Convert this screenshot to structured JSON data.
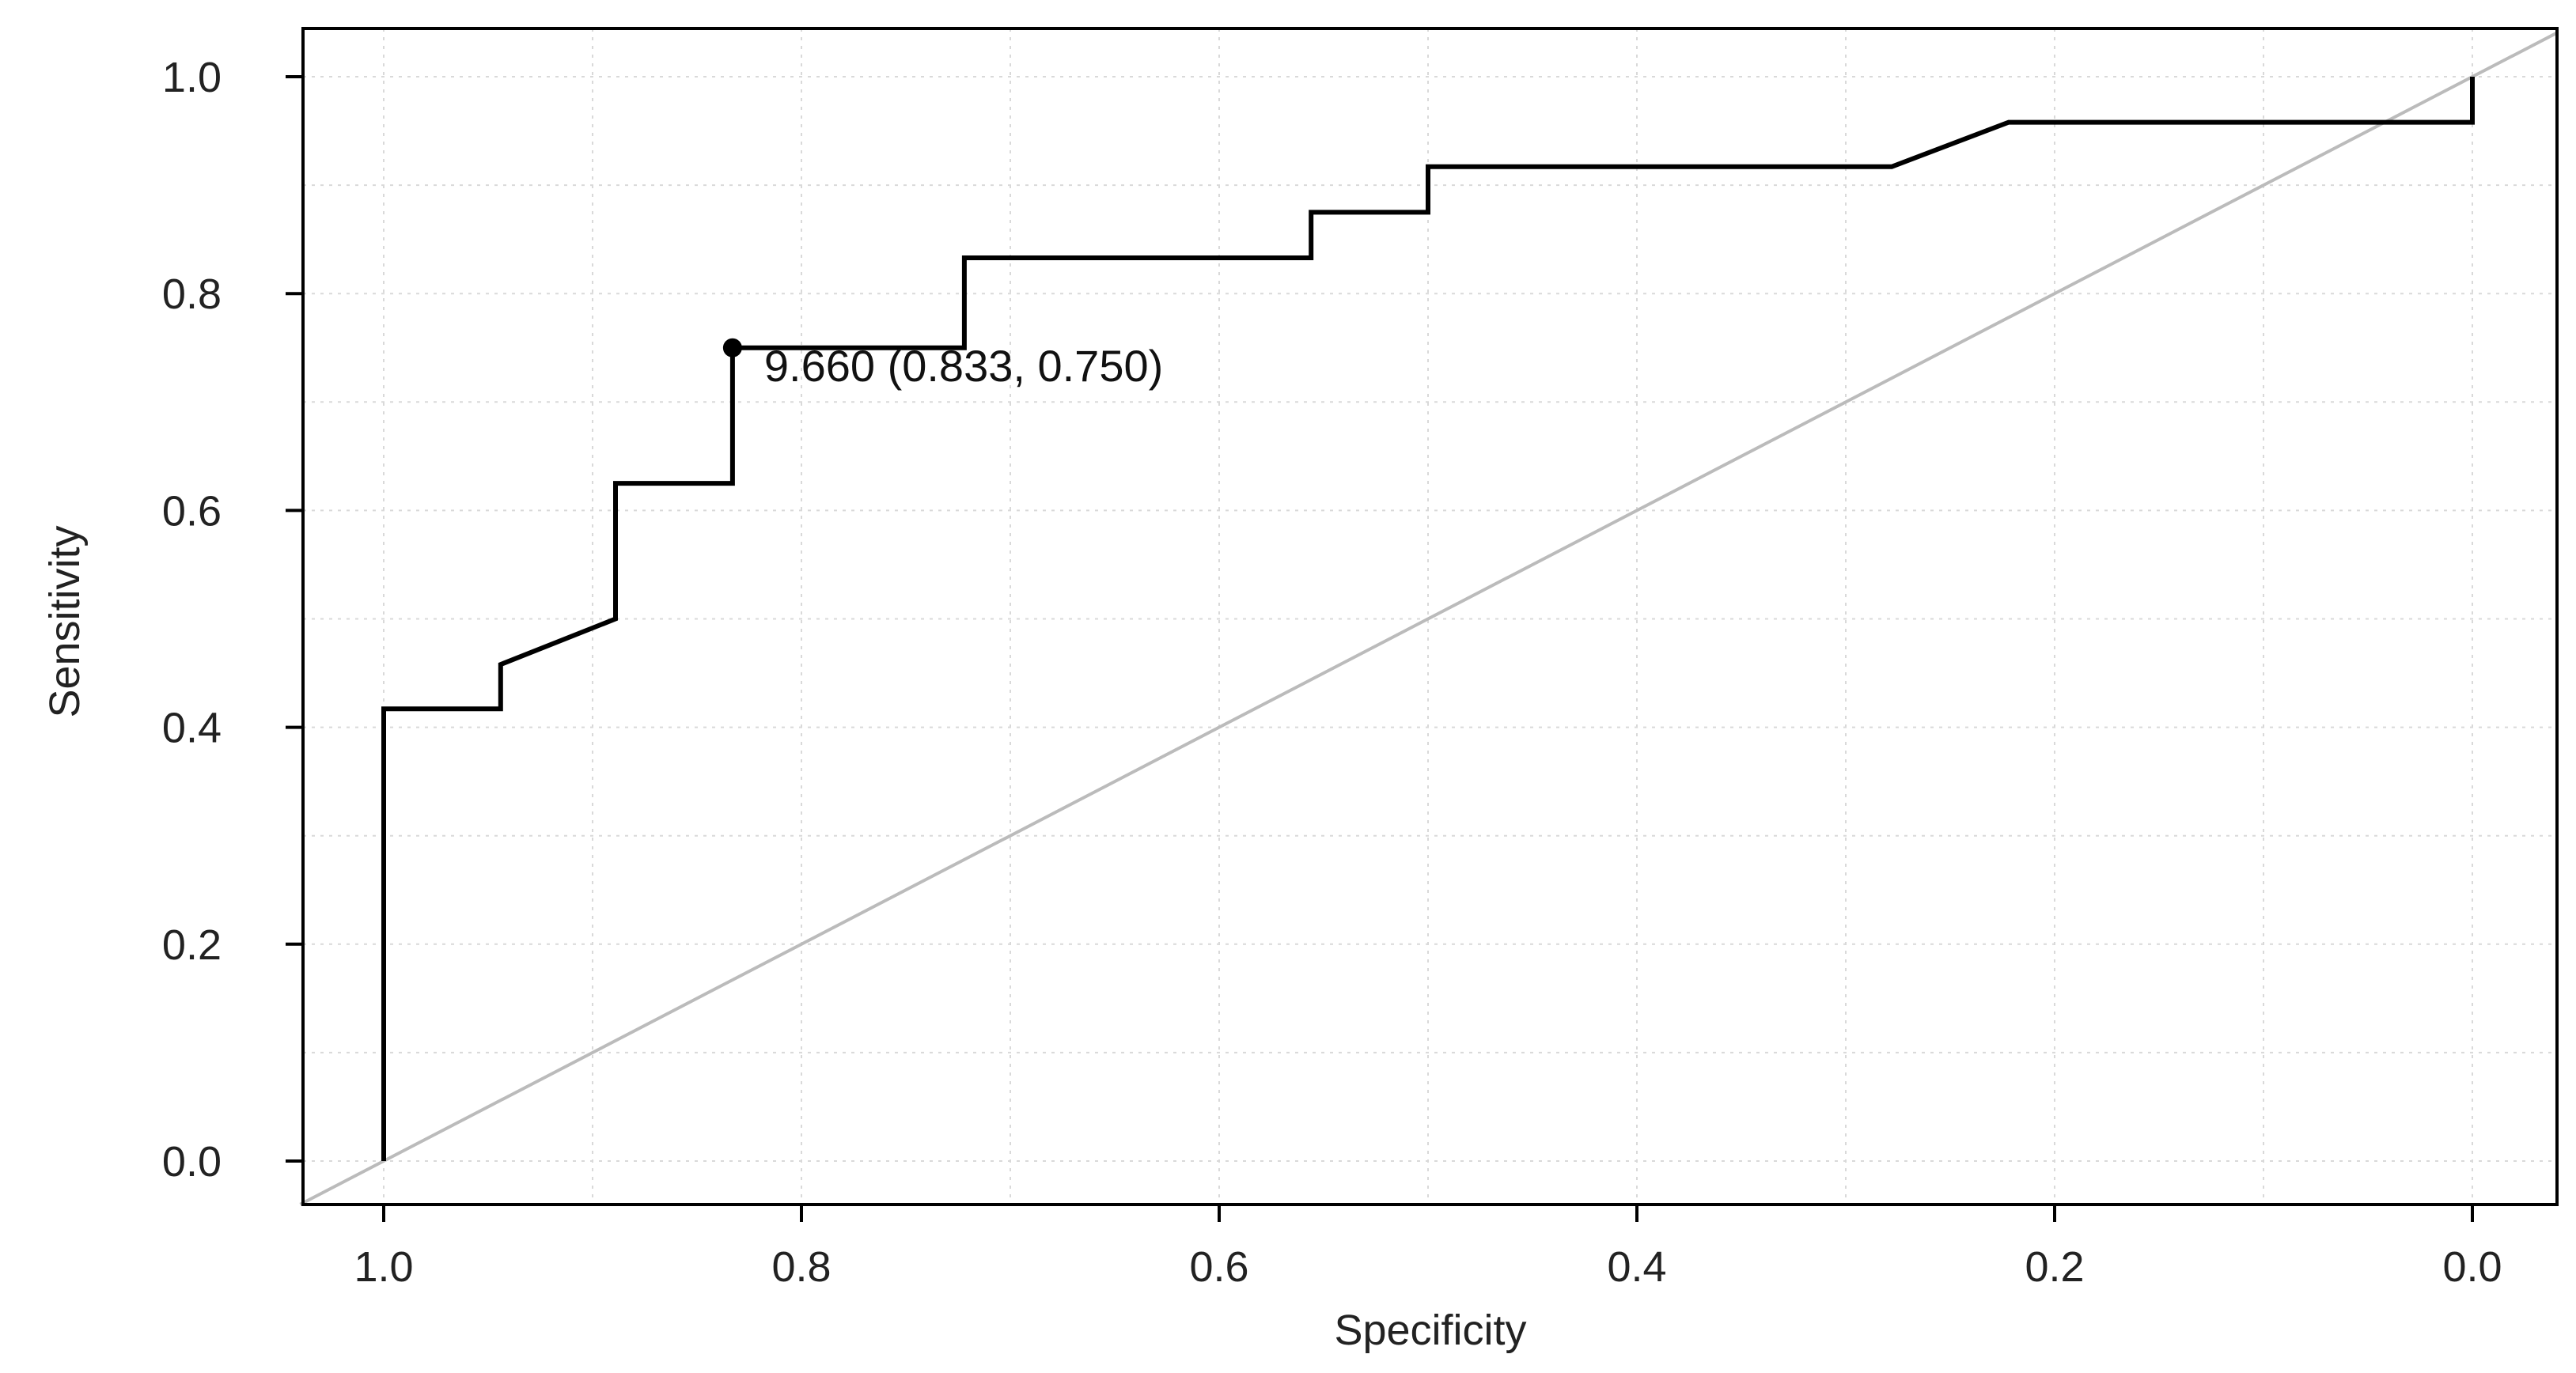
{
  "chart_data": {
    "type": "line",
    "title": "",
    "xlabel": "Specificity",
    "ylabel": "Sensitivity",
    "xlim": [
      1.0,
      0.0
    ],
    "ylim": [
      0.0,
      1.0
    ],
    "x_reversed": true,
    "grid": true,
    "x_ticks": [
      "1.0",
      "0.8",
      "0.6",
      "0.4",
      "0.2",
      "0.0"
    ],
    "y_ticks": [
      "0.0",
      "0.2",
      "0.4",
      "0.6",
      "0.8",
      "1.0"
    ],
    "series": [
      {
        "type": "roc-step",
        "color": "#000000",
        "points": [
          [
            1.0,
            0.0
          ],
          [
            1.0,
            0.417
          ],
          [
            0.944,
            0.417
          ],
          [
            0.944,
            0.458
          ],
          [
            0.889,
            0.5
          ],
          [
            0.889,
            0.625
          ],
          [
            0.833,
            0.625
          ],
          [
            0.833,
            0.75
          ],
          [
            0.722,
            0.75
          ],
          [
            0.722,
            0.833
          ],
          [
            0.556,
            0.833
          ],
          [
            0.556,
            0.875
          ],
          [
            0.5,
            0.875
          ],
          [
            0.5,
            0.917
          ],
          [
            0.278,
            0.917
          ],
          [
            0.222,
            0.958
          ],
          [
            0.0,
            0.958
          ],
          [
            0.0,
            1.0
          ]
        ]
      },
      {
        "type": "reference-diagonal",
        "color": "#bbbbbb",
        "points": [
          [
            1.04,
            -0.04
          ],
          [
            -0.04,
            1.04
          ]
        ]
      }
    ],
    "annotations": [
      {
        "x": 0.833,
        "y": 0.75,
        "text": "9.660 (0.833, 0.750)"
      }
    ]
  }
}
